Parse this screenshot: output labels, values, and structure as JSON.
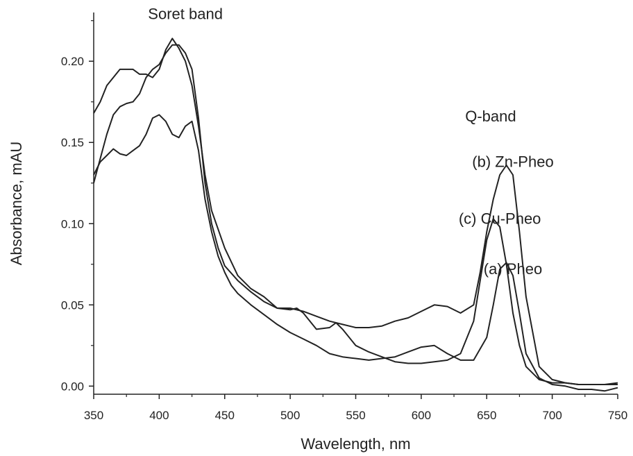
{
  "chart_data": {
    "type": "line",
    "title": "",
    "xlabel": "Wavelength, nm",
    "ylabel": "Absorbance, mAU",
    "xlim": [
      350,
      750
    ],
    "ylim": [
      -0.005,
      0.23
    ],
    "xticks": [
      350,
      400,
      450,
      500,
      550,
      600,
      650,
      700,
      750
    ],
    "yticks": [
      0.0,
      0.05,
      0.1,
      0.15,
      0.2
    ],
    "ytick_labels": [
      "0.00",
      "0.05",
      "0.10",
      "0.15",
      "0.20"
    ],
    "grid": false,
    "annotations": [
      {
        "text": "Soret band",
        "x": 420,
        "y": 0.226
      },
      {
        "text": "Q-band",
        "x": 653,
        "y": 0.163
      },
      {
        "text": "(b) Zn-Pheo",
        "x": 670,
        "y": 0.135
      },
      {
        "text": "(c) Cu-Pheo",
        "x": 660,
        "y": 0.1
      },
      {
        "text": "(a) Pheo",
        "x": 670,
        "y": 0.069
      }
    ],
    "series": [
      {
        "x": [
          350,
          355,
          360,
          365,
          370,
          375,
          380,
          385,
          390,
          395,
          400,
          405,
          410,
          415,
          420,
          425,
          430,
          435,
          440,
          445,
          450,
          455,
          460,
          470,
          480,
          490,
          500,
          510,
          520,
          530,
          540,
          550,
          560,
          570,
          580,
          590,
          600,
          610,
          620,
          630,
          640,
          650,
          655,
          660,
          665,
          670,
          675,
          680,
          690,
          700,
          710,
          720,
          730,
          740,
          750
        ],
        "y": [
          0.13,
          0.138,
          0.142,
          0.146,
          0.143,
          0.142,
          0.145,
          0.148,
          0.155,
          0.165,
          0.167,
          0.163,
          0.155,
          0.153,
          0.16,
          0.163,
          0.145,
          0.115,
          0.095,
          0.08,
          0.07,
          0.062,
          0.057,
          0.05,
          0.044,
          0.038,
          0.033,
          0.029,
          0.025,
          0.02,
          0.018,
          0.017,
          0.016,
          0.017,
          0.018,
          0.021,
          0.024,
          0.025,
          0.02,
          0.016,
          0.016,
          0.03,
          0.05,
          0.072,
          0.076,
          0.068,
          0.045,
          0.02,
          0.005,
          0.001,
          0.0,
          -0.002,
          -0.002,
          -0.003,
          -0.001
        ]
      },
      {
        "x": [
          350,
          355,
          360,
          365,
          370,
          375,
          380,
          385,
          390,
          395,
          400,
          405,
          410,
          415,
          420,
          425,
          430,
          435,
          440,
          445,
          450,
          460,
          470,
          480,
          490,
          500,
          510,
          520,
          530,
          540,
          550,
          560,
          570,
          580,
          590,
          600,
          610,
          620,
          630,
          640,
          645,
          650,
          655,
          660,
          665,
          670,
          675,
          680,
          690,
          700,
          710,
          720,
          730,
          740,
          750
        ],
        "y": [
          0.125,
          0.14,
          0.155,
          0.167,
          0.172,
          0.174,
          0.175,
          0.18,
          0.19,
          0.195,
          0.198,
          0.205,
          0.21,
          0.21,
          0.205,
          0.195,
          0.165,
          0.125,
          0.1,
          0.085,
          0.074,
          0.065,
          0.058,
          0.052,
          0.048,
          0.048,
          0.046,
          0.043,
          0.04,
          0.038,
          0.036,
          0.036,
          0.037,
          0.04,
          0.042,
          0.046,
          0.05,
          0.049,
          0.045,
          0.05,
          0.07,
          0.095,
          0.115,
          0.13,
          0.136,
          0.13,
          0.095,
          0.055,
          0.012,
          0.004,
          0.002,
          0.001,
          0.001,
          0.001,
          0.002
        ]
      },
      {
        "x": [
          350,
          355,
          360,
          365,
          370,
          375,
          380,
          385,
          390,
          395,
          400,
          405,
          410,
          415,
          420,
          425,
          430,
          435,
          440,
          450,
          460,
          470,
          480,
          490,
          500,
          505,
          510,
          520,
          530,
          535,
          540,
          550,
          560,
          570,
          580,
          590,
          600,
          610,
          620,
          630,
          640,
          645,
          650,
          655,
          660,
          665,
          670,
          675,
          680,
          690,
          700,
          710,
          720,
          730,
          740,
          750
        ],
        "y": [
          0.168,
          0.175,
          0.185,
          0.19,
          0.195,
          0.195,
          0.195,
          0.192,
          0.192,
          0.19,
          0.195,
          0.207,
          0.214,
          0.208,
          0.2,
          0.185,
          0.16,
          0.13,
          0.108,
          0.085,
          0.068,
          0.06,
          0.055,
          0.048,
          0.047,
          0.048,
          0.045,
          0.035,
          0.036,
          0.039,
          0.035,
          0.025,
          0.021,
          0.018,
          0.015,
          0.014,
          0.014,
          0.015,
          0.016,
          0.02,
          0.04,
          0.065,
          0.09,
          0.103,
          0.098,
          0.075,
          0.045,
          0.025,
          0.012,
          0.004,
          0.002,
          0.002,
          0.001,
          0.001,
          0.001,
          0.001
        ]
      }
    ]
  }
}
